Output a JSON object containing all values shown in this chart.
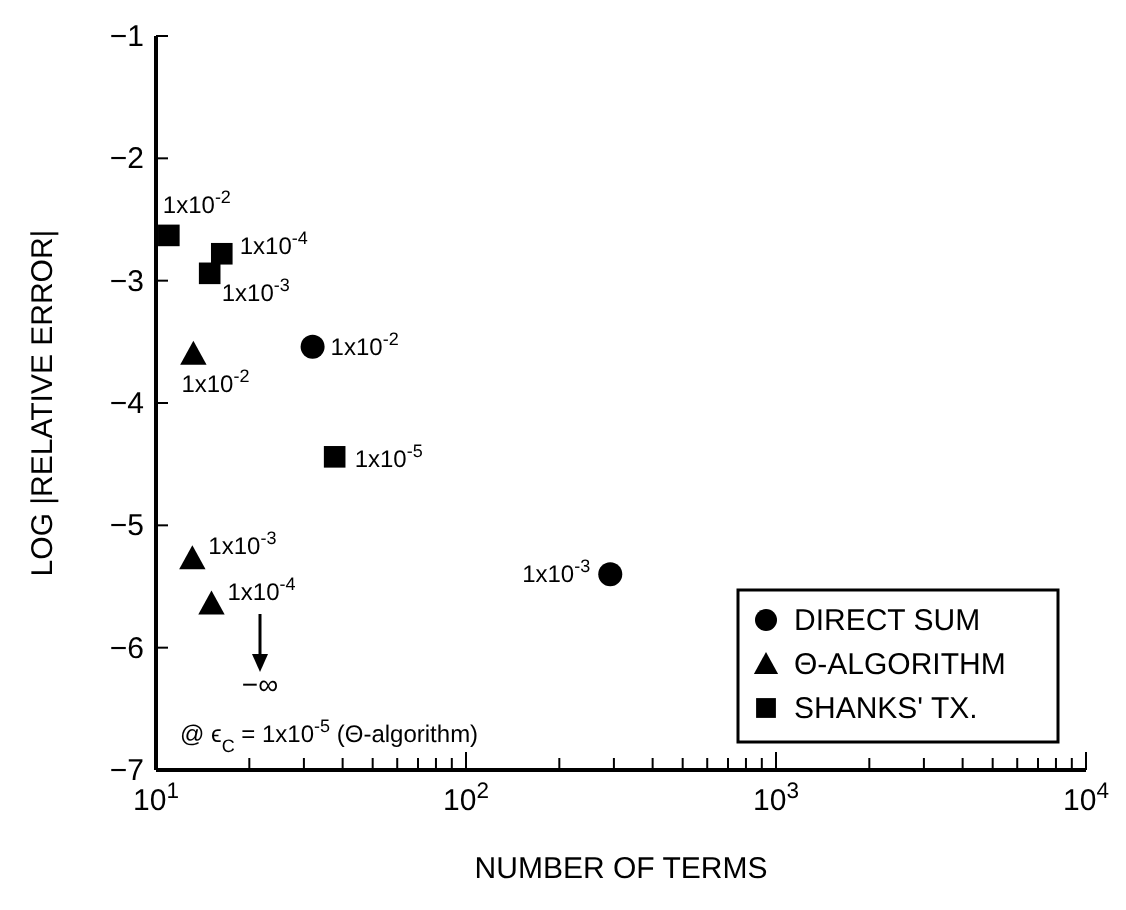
{
  "chart_data": {
    "type": "scatter",
    "xlabel": "NUMBER OF TERMS",
    "ylabel": "LOG |RELATIVE ERROR|",
    "log": "x",
    "xlim": [
      10,
      10000
    ],
    "xticks": [
      {
        "value": 10,
        "label": "10$^{1}$"
      },
      {
        "value": 20,
        "label": null
      },
      {
        "value": 30,
        "label": null
      },
      {
        "value": 40,
        "label": null
      },
      {
        "value": 50,
        "label": null
      },
      {
        "value": 60,
        "label": null
      },
      {
        "value": 70,
        "label": null
      },
      {
        "value": 80,
        "label": null
      },
      {
        "value": 90,
        "label": null
      },
      {
        "value": 100,
        "label": "10$^{2}$"
      },
      {
        "value": 200,
        "label": null
      },
      {
        "value": 300,
        "label": null
      },
      {
        "value": 400,
        "label": null
      },
      {
        "value": 500,
        "label": null
      },
      {
        "value": 600,
        "label": null
      },
      {
        "value": 700,
        "label": null
      },
      {
        "value": 800,
        "label": null
      },
      {
        "value": 900,
        "label": null
      },
      {
        "value": 1000,
        "label": "10$^{3}$"
      },
      {
        "value": 2000,
        "label": null
      },
      {
        "value": 3000,
        "label": null
      },
      {
        "value": 4000,
        "label": null
      },
      {
        "value": 5000,
        "label": null
      },
      {
        "value": 6000,
        "label": null
      },
      {
        "value": 7000,
        "label": null
      },
      {
        "value": 8000,
        "label": null
      },
      {
        "value": 9000,
        "label": null
      },
      {
        "value": 10000,
        "label": "10$^{4}$"
      }
    ],
    "ylim": [
      -7,
      -1
    ],
    "yticks": [
      -7,
      -6,
      -5,
      -4,
      -3,
      -2,
      -1
    ],
    "legend": "bottom right",
    "grid": false,
    "series": [
      {
        "name": "DIRECT SUM",
        "color": "#000000",
        "marker": "circle",
        "x": [
          32,
          292
        ],
        "values": [
          -3.54,
          -5.4
        ]
      },
      {
        "name": "Θ-ALGORITHM",
        "color": "#000000",
        "marker": "triangle",
        "x": [
          13.2,
          13.1,
          15.1
        ],
        "values": [
          -3.6,
          -5.27,
          -5.64
        ]
      },
      {
        "name": "SHANKS' TX.",
        "color": "#000000",
        "marker": "square",
        "x": [
          11,
          16.3,
          14.9,
          37.7
        ],
        "values": [
          -2.63,
          -2.78,
          -2.94,
          -4.44
        ]
      }
    ],
    "annotations": [
      {
        "text": "1x10$^{-2}$",
        "x": 32,
        "y": -3.54
      },
      {
        "text": "1x10$^{-3}$",
        "x": 292,
        "y": -5.4
      },
      {
        "text": "1x10$^{-2}$",
        "x": 13.2,
        "y": -3.6
      },
      {
        "text": "1x10$^{-3}$",
        "x": 13.1,
        "y": -5.27
      },
      {
        "text": "1x10$^{-4}$",
        "x": 15.1,
        "y": -5.64
      },
      {
        "text": "1x10$^{-2}$",
        "x": 11,
        "y": -2.63
      },
      {
        "text": "1x10$^{-4}$",
        "x": 16.3,
        "y": -2.78
      },
      {
        "text": "1x10$^{-3}$",
        "x": 14.9,
        "y": -2.94
      },
      {
        "text": "1x10$^{-5}$",
        "x": 37.7,
        "y": -4.44
      },
      "−∞",
      "@ ϵ$_{C}$ = 1x10$^{-5}$ (Θ-algorithm)"
    ]
  }
}
